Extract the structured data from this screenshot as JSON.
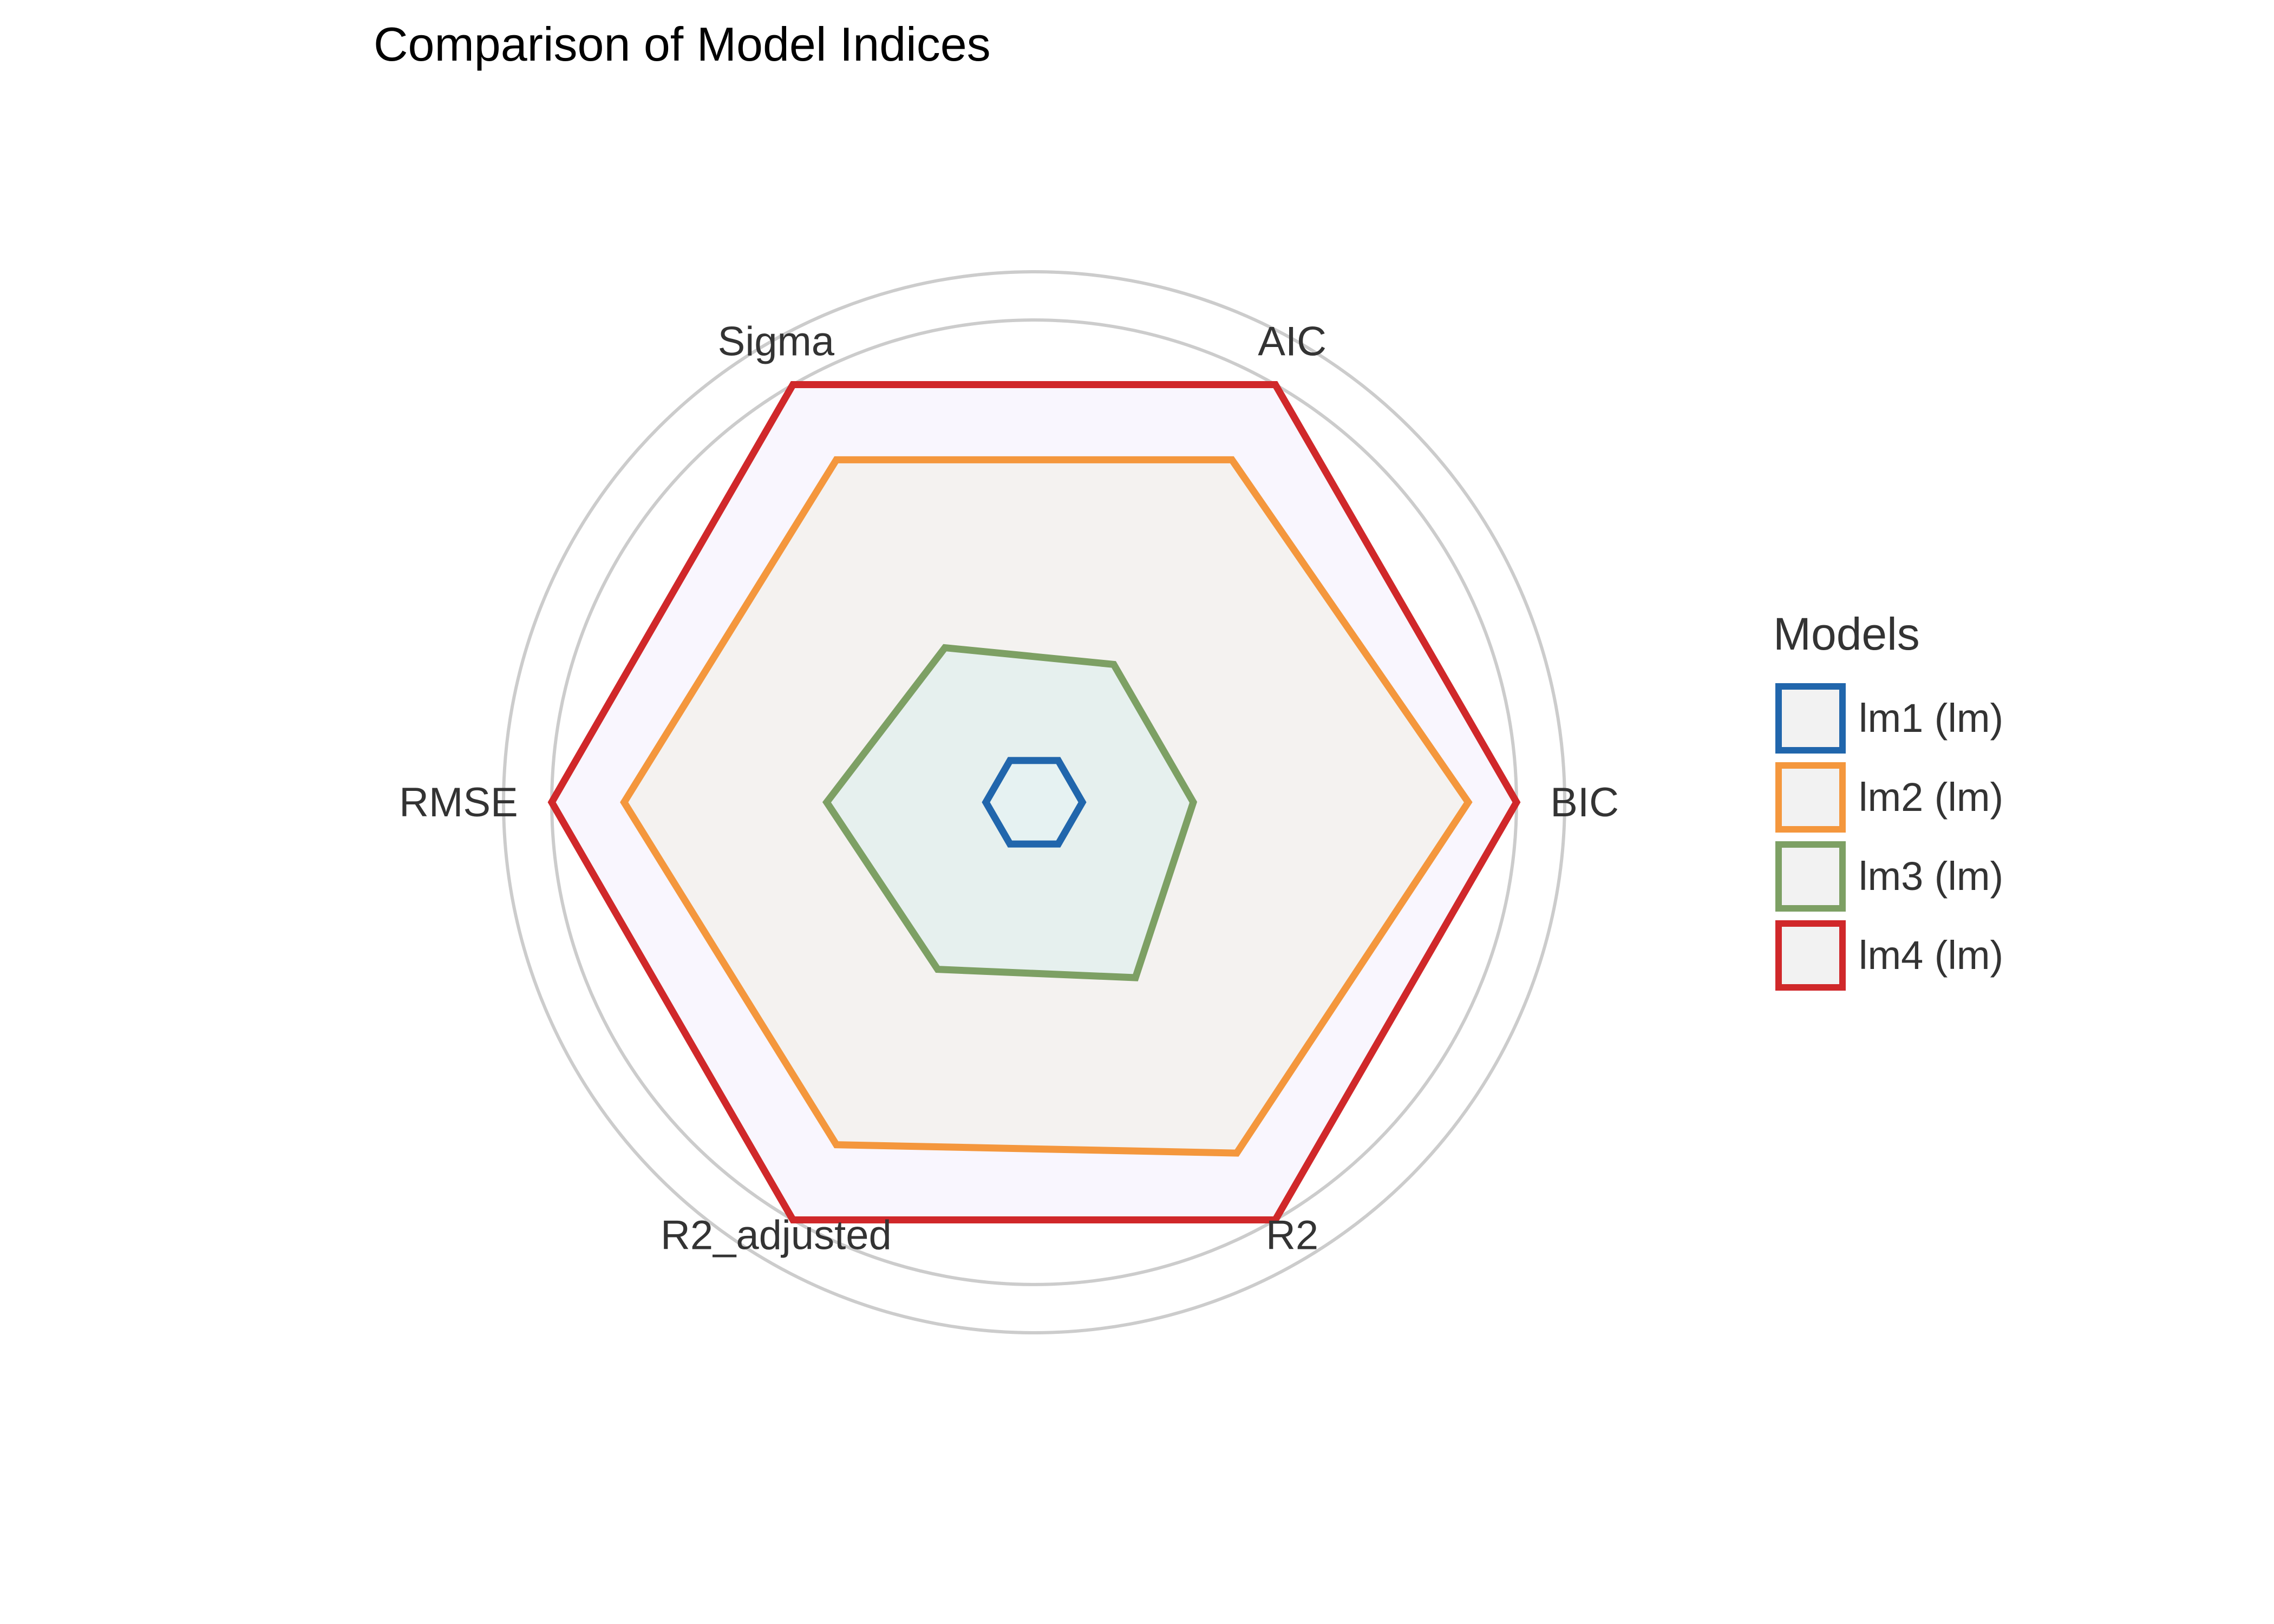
{
  "chart_data": {
    "type": "radar",
    "title": "Comparison of Model Indices",
    "axes": [
      "BIC",
      "AIC",
      "Sigma",
      "RMSE",
      "R2_adjusted",
      "R2"
    ],
    "rlim": [
      0,
      1.1
    ],
    "grid": true,
    "grid_rings": [
      0.25,
      0.5,
      0.75,
      1.0,
      1.1
    ],
    "legend": {
      "title": "Models",
      "placement": "right"
    },
    "series": [
      {
        "name": "lm1 (lm)",
        "color": "#2166AC",
        "fill": "#E6F2F2",
        "values": [
          0.1,
          0.1,
          0.1,
          0.1,
          0.1,
          0.1
        ]
      },
      {
        "name": "lm2 (lm)",
        "color": "#F4973D",
        "fill": "#F4F2F0",
        "values": [
          0.9,
          0.82,
          0.82,
          0.85,
          0.82,
          0.84
        ]
      },
      {
        "name": "lm3 (lm)",
        "color": "#7DA064",
        "fill": "#E6F0EE",
        "values": [
          0.33,
          0.33,
          0.37,
          0.43,
          0.4,
          0.42
        ]
      },
      {
        "name": "lm4 (lm)",
        "color": "#D0282A",
        "fill": "#F9F6FE",
        "values": [
          1.0,
          1.0,
          1.0,
          1.0,
          1.0,
          1.0
        ]
      }
    ]
  }
}
